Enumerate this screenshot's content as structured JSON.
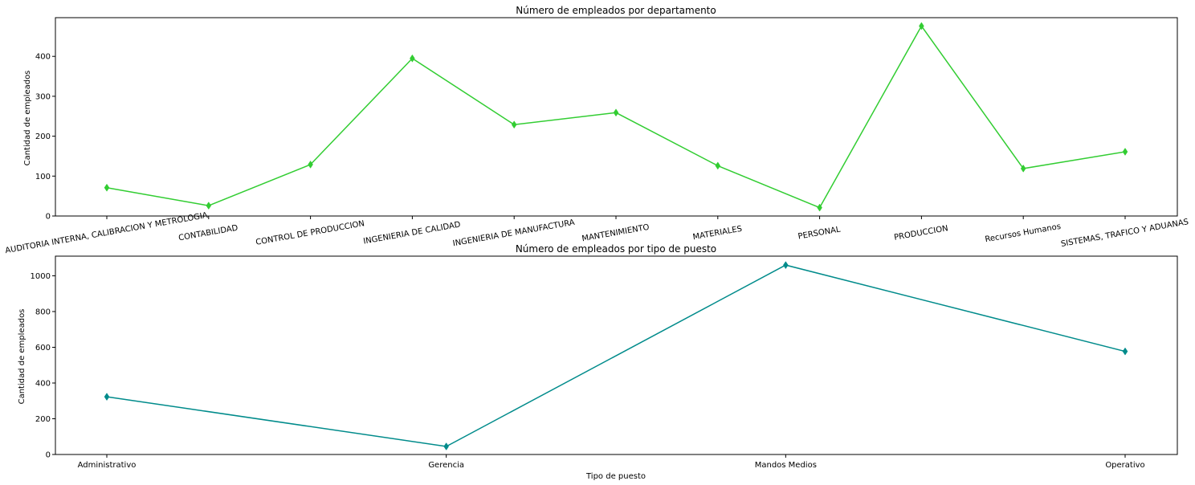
{
  "chart_data": [
    {
      "type": "line",
      "title": "Número de empleados por departamento",
      "xlabel": "",
      "ylabel": "Cantidad de empleados",
      "categories": [
        "AUDITORIA INTERNA, CALIBRACION Y METROLOGIA",
        "CONTABILIDAD",
        "CONTROL DE PRODUCCION",
        "INGENIERIA DE CALIDAD",
        "INGENIERIA DE MANUFACTURA",
        "MANTENIMIENTO",
        "MATERIALES",
        "PERSONAL",
        "PRODUCCION",
        "Recursos Humanos",
        "SISTEMAS, TRAFICO Y ADUANAS"
      ],
      "values": [
        71,
        26,
        129,
        395,
        229,
        259,
        126,
        21,
        476,
        119,
        161
      ],
      "yticks": [
        0,
        100,
        200,
        300,
        400
      ],
      "ylim": [
        0,
        497
      ],
      "color": "#32cd32",
      "marker": "thin-diamond",
      "x_tick_rotation": "slanted",
      "grid": false,
      "legend": "none"
    },
    {
      "type": "line",
      "title": "Número de empleados por tipo de puesto",
      "xlabel": "Tipo de puesto",
      "ylabel": "Cantidad de empleados",
      "categories": [
        "Administrativo",
        "Gerencia",
        "Mandos Medios",
        "Operativo"
      ],
      "values": [
        323,
        45,
        1060,
        577
      ],
      "yticks": [
        0,
        200,
        400,
        600,
        800,
        1000
      ],
      "ylim": [
        0,
        1110
      ],
      "color": "#008b8b",
      "marker": "thin-diamond",
      "x_tick_rotation": "none",
      "grid": false,
      "legend": "none"
    }
  ]
}
